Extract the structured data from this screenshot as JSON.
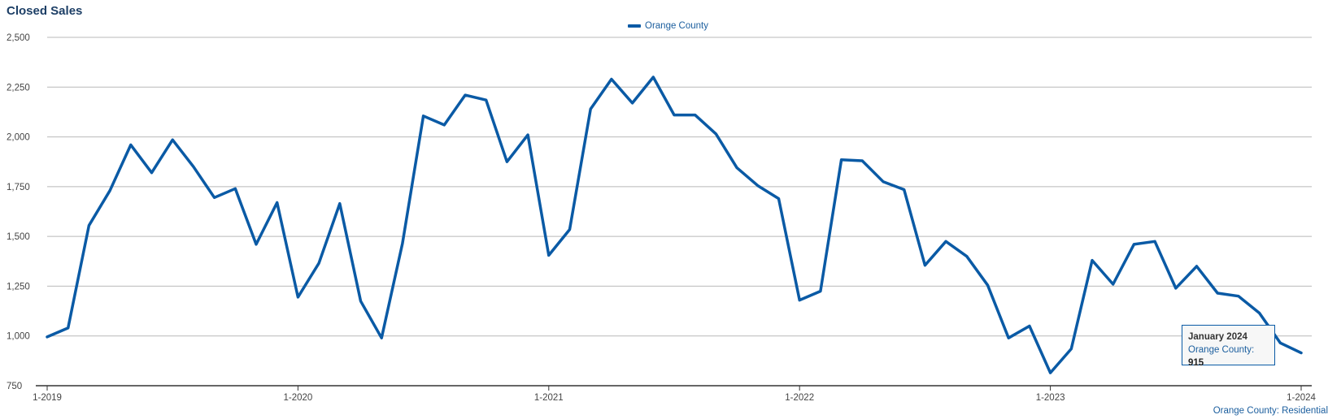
{
  "title": "Closed Sales",
  "footer": "Orange County: Residential",
  "tooltip": {
    "title": "January 2024",
    "series": "Orange County",
    "separator": ":",
    "value": "915"
  },
  "chart_data": {
    "type": "line",
    "title": "Closed Sales",
    "xlabel": "",
    "ylabel": "",
    "ylim": [
      750,
      2500
    ],
    "yticks": [
      750,
      1000,
      1250,
      1500,
      1750,
      2000,
      2250,
      2500
    ],
    "ytick_labels": [
      "750",
      "1,000",
      "1,250",
      "1,500",
      "1,750",
      "2,000",
      "2,250",
      "2,500"
    ],
    "xtick_labels": [
      "1-2019",
      "1-2020",
      "1-2021",
      "1-2022",
      "1-2023",
      "1-2024"
    ],
    "grid": true,
    "legend_position": "top-center",
    "series": [
      {
        "name": "Orange County",
        "color": "#0a5aa5",
        "x": [
          "2019-01",
          "2019-02",
          "2019-03",
          "2019-04",
          "2019-05",
          "2019-06",
          "2019-07",
          "2019-08",
          "2019-09",
          "2019-10",
          "2019-11",
          "2019-12",
          "2020-01",
          "2020-02",
          "2020-03",
          "2020-04",
          "2020-05",
          "2020-06",
          "2020-07",
          "2020-08",
          "2020-09",
          "2020-10",
          "2020-11",
          "2020-12",
          "2021-01",
          "2021-02",
          "2021-03",
          "2021-04",
          "2021-05",
          "2021-06",
          "2021-07",
          "2021-08",
          "2021-09",
          "2021-10",
          "2021-11",
          "2021-12",
          "2022-01",
          "2022-02",
          "2022-03",
          "2022-04",
          "2022-05",
          "2022-06",
          "2022-07",
          "2022-08",
          "2022-09",
          "2022-10",
          "2022-11",
          "2022-12",
          "2023-01",
          "2023-02",
          "2023-03",
          "2023-04",
          "2023-05",
          "2023-06",
          "2023-07",
          "2023-08",
          "2023-09",
          "2023-10",
          "2023-11",
          "2023-12",
          "2024-01"
        ],
        "values": [
          995,
          1040,
          1555,
          1730,
          1960,
          1820,
          1985,
          1850,
          1695,
          1740,
          1460,
          1670,
          1195,
          1365,
          1665,
          1175,
          990,
          1465,
          2105,
          2060,
          2210,
          2185,
          1875,
          2010,
          1405,
          1535,
          2140,
          2290,
          2170,
          2300,
          2110,
          2110,
          2015,
          1845,
          1755,
          1690,
          1180,
          1225,
          1885,
          1880,
          1775,
          1735,
          1355,
          1475,
          1400,
          1255,
          990,
          1050,
          815,
          935,
          1380,
          1260,
          1460,
          1475,
          1240,
          1350,
          1215,
          1200,
          1115,
          965,
          915
        ]
      }
    ]
  }
}
